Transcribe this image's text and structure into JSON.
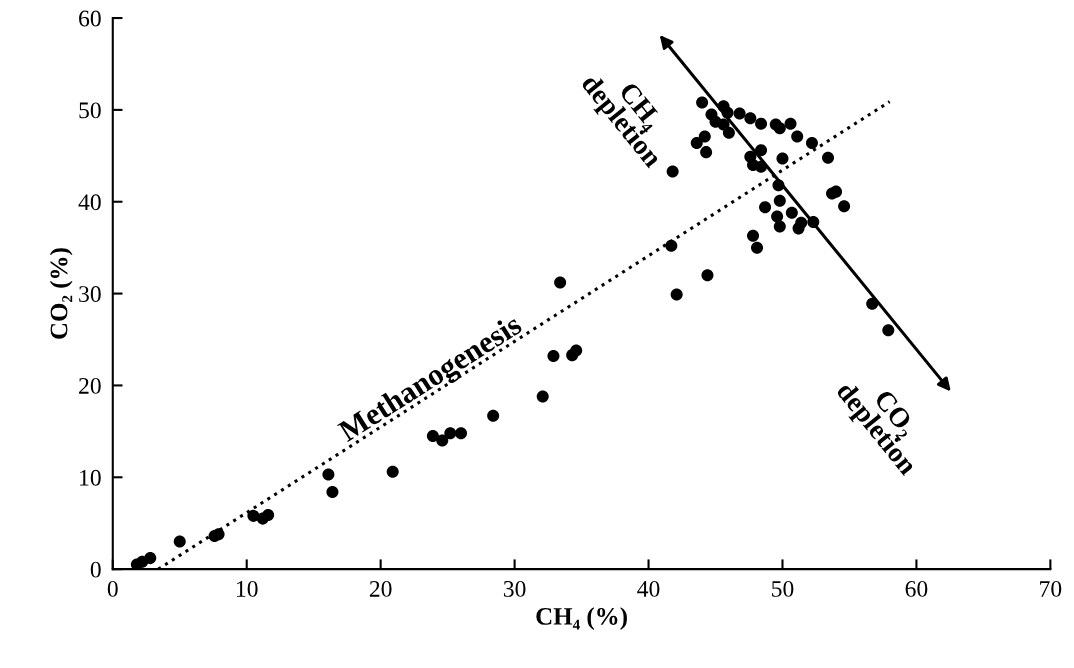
{
  "chart_data": {
    "type": "scatter",
    "xlabel": "CH₄ (%)",
    "ylabel": "CO₂ (%)",
    "xlim": [
      0,
      70
    ],
    "ylim": [
      0,
      60
    ],
    "xticks": [
      0,
      10,
      20,
      30,
      40,
      50,
      60,
      70
    ],
    "yticks": [
      0,
      10,
      20,
      30,
      40,
      50,
      60
    ],
    "grid": false,
    "marker": "circle",
    "series": [
      {
        "color": "#000000",
        "x": [
          1.8,
          2.2,
          2.8,
          5.0,
          7.6,
          7.9,
          10.5,
          11.2,
          11.6,
          16.1,
          16.4,
          20.9,
          23.9,
          24.6,
          25.2,
          26.0,
          28.4,
          32.1,
          32.9,
          33.4,
          34.3,
          34.6,
          41.7,
          41.8,
          42.1,
          44.4,
          56.7,
          57.9,
          44.0,
          45.6,
          45.9,
          44.7,
          46.8,
          47.6,
          45.0,
          45.6,
          46.0,
          44.2,
          43.6,
          44.3,
          48.4,
          49.5,
          49.8,
          50.6,
          51.1,
          52.2,
          48.4,
          47.6,
          47.8,
          48.4,
          50.0,
          53.4,
          49.7,
          53.7,
          54.0,
          54.6,
          48.7,
          49.8,
          50.7,
          49.6,
          49.8,
          51.2,
          51.4,
          52.3,
          47.8,
          48.1
        ],
        "values": [
          0.5,
          0.8,
          1.2,
          3.0,
          3.6,
          3.8,
          5.8,
          5.5,
          5.9,
          10.3,
          8.4,
          10.6,
          14.5,
          14.0,
          14.8,
          14.8,
          16.7,
          18.8,
          23.2,
          31.2,
          23.3,
          23.8,
          35.2,
          43.3,
          29.9,
          32.0,
          28.9,
          26.0,
          50.8,
          50.4,
          49.7,
          49.5,
          49.6,
          49.1,
          48.7,
          48.4,
          47.5,
          47.1,
          46.4,
          45.4,
          48.5,
          48.4,
          48.0,
          48.5,
          47.1,
          46.4,
          45.6,
          44.9,
          44.0,
          43.8,
          44.7,
          44.8,
          41.8,
          40.9,
          41.1,
          39.5,
          39.4,
          40.1,
          38.8,
          38.4,
          37.3,
          37.1,
          37.7,
          37.8,
          36.3,
          35.0
        ]
      },
      {
        "type": "line",
        "color": "#000000",
        "line_style": "dotted",
        "marker": "none",
        "x": [
          3.4,
          58.0
        ],
        "values": [
          0,
          50.9
        ]
      }
    ],
    "annotations": [
      "Methanogenesis",
      "CH₄\ndepletion",
      "CO₂\ndepletion"
    ]
  }
}
